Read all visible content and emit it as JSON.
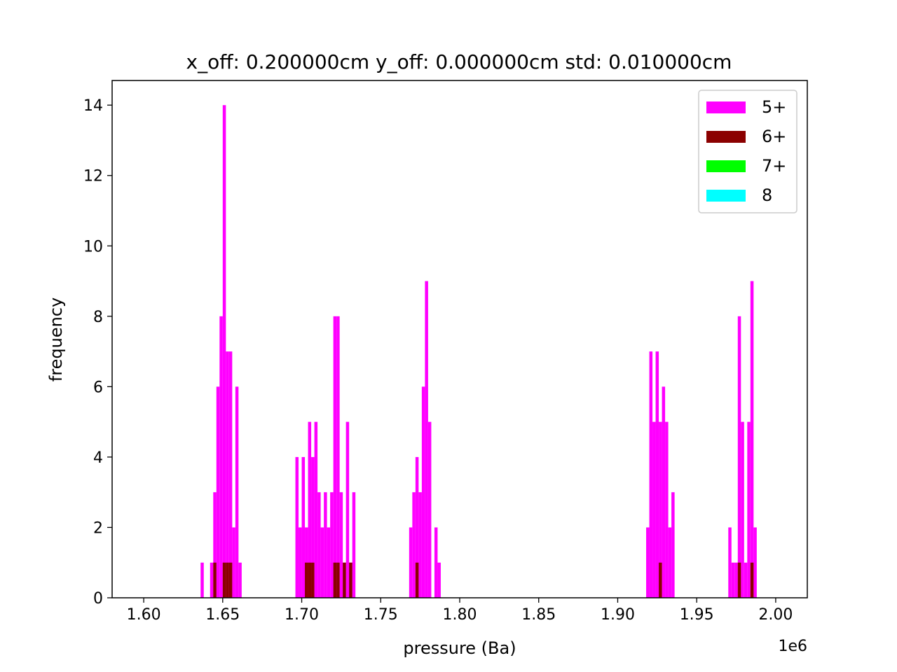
{
  "chart_data": {
    "type": "bar",
    "title": "x_off: 0.200000cm y_off: 0.000000cm std: 0.010000cm",
    "xlabel": "pressure (Ba)",
    "ylabel": "frequency",
    "x_offset_label": "1e6",
    "xlim": [
      1.58,
      2.02
    ],
    "ylim": [
      0,
      14.7
    ],
    "x_ticks": [
      1.6,
      1.65,
      1.7,
      1.75,
      1.8,
      1.85,
      1.9,
      1.95,
      2.0
    ],
    "x_tick_labels": [
      "1.60",
      "1.65",
      "1.70",
      "1.75",
      "1.80",
      "1.85",
      "1.90",
      "1.95",
      "2.00"
    ],
    "y_ticks": [
      0,
      2,
      4,
      6,
      8,
      10,
      12,
      14
    ],
    "y_tick_labels": [
      "0",
      "2",
      "4",
      "6",
      "8",
      "10",
      "12",
      "14"
    ],
    "grid": false,
    "legend_position": "top-right",
    "bin_width": 0.002,
    "series": [
      {
        "name": "5+",
        "color": "#ff00ff",
        "bins": [
          [
            1.636,
            1
          ],
          [
            1.642,
            1
          ],
          [
            1.644,
            3
          ],
          [
            1.646,
            6
          ],
          [
            1.648,
            8
          ],
          [
            1.65,
            14
          ],
          [
            1.652,
            7
          ],
          [
            1.654,
            7
          ],
          [
            1.656,
            2
          ],
          [
            1.658,
            6
          ],
          [
            1.66,
            1
          ],
          [
            1.696,
            4
          ],
          [
            1.698,
            2
          ],
          [
            1.7,
            4
          ],
          [
            1.702,
            2
          ],
          [
            1.704,
            5
          ],
          [
            1.706,
            4
          ],
          [
            1.708,
            5
          ],
          [
            1.71,
            3
          ],
          [
            1.712,
            2
          ],
          [
            1.714,
            3
          ],
          [
            1.716,
            2
          ],
          [
            1.718,
            3
          ],
          [
            1.72,
            8
          ],
          [
            1.722,
            8
          ],
          [
            1.724,
            3
          ],
          [
            1.726,
            1
          ],
          [
            1.728,
            5
          ],
          [
            1.73,
            1
          ],
          [
            1.732,
            3
          ],
          [
            1.768,
            2
          ],
          [
            1.77,
            3
          ],
          [
            1.772,
            4
          ],
          [
            1.774,
            3
          ],
          [
            1.776,
            6
          ],
          [
            1.778,
            9
          ],
          [
            1.78,
            5
          ],
          [
            1.784,
            2
          ],
          [
            1.786,
            1
          ],
          [
            1.918,
            2
          ],
          [
            1.92,
            7
          ],
          [
            1.922,
            5
          ],
          [
            1.924,
            7
          ],
          [
            1.926,
            5
          ],
          [
            1.928,
            6
          ],
          [
            1.93,
            5
          ],
          [
            1.932,
            2
          ],
          [
            1.934,
            3
          ],
          [
            1.97,
            2
          ],
          [
            1.972,
            1
          ],
          [
            1.974,
            1
          ],
          [
            1.976,
            8
          ],
          [
            1.978,
            5
          ],
          [
            1.98,
            1
          ],
          [
            1.982,
            5
          ],
          [
            1.984,
            9
          ],
          [
            1.986,
            2
          ]
        ]
      },
      {
        "name": "6+",
        "color": "#8b0000",
        "bins": [
          [
            1.644,
            1
          ],
          [
            1.65,
            1
          ],
          [
            1.652,
            1
          ],
          [
            1.654,
            1
          ],
          [
            1.702,
            1
          ],
          [
            1.704,
            1
          ],
          [
            1.706,
            1
          ],
          [
            1.72,
            1
          ],
          [
            1.722,
            1
          ],
          [
            1.726,
            1
          ],
          [
            1.73,
            1
          ],
          [
            1.772,
            1
          ],
          [
            1.926,
            1
          ],
          [
            1.976,
            1
          ],
          [
            1.984,
            1
          ]
        ]
      },
      {
        "name": "7+",
        "color": "#00ff00",
        "bins": []
      },
      {
        "name": "8",
        "color": "#00ffff",
        "bins": []
      }
    ]
  }
}
